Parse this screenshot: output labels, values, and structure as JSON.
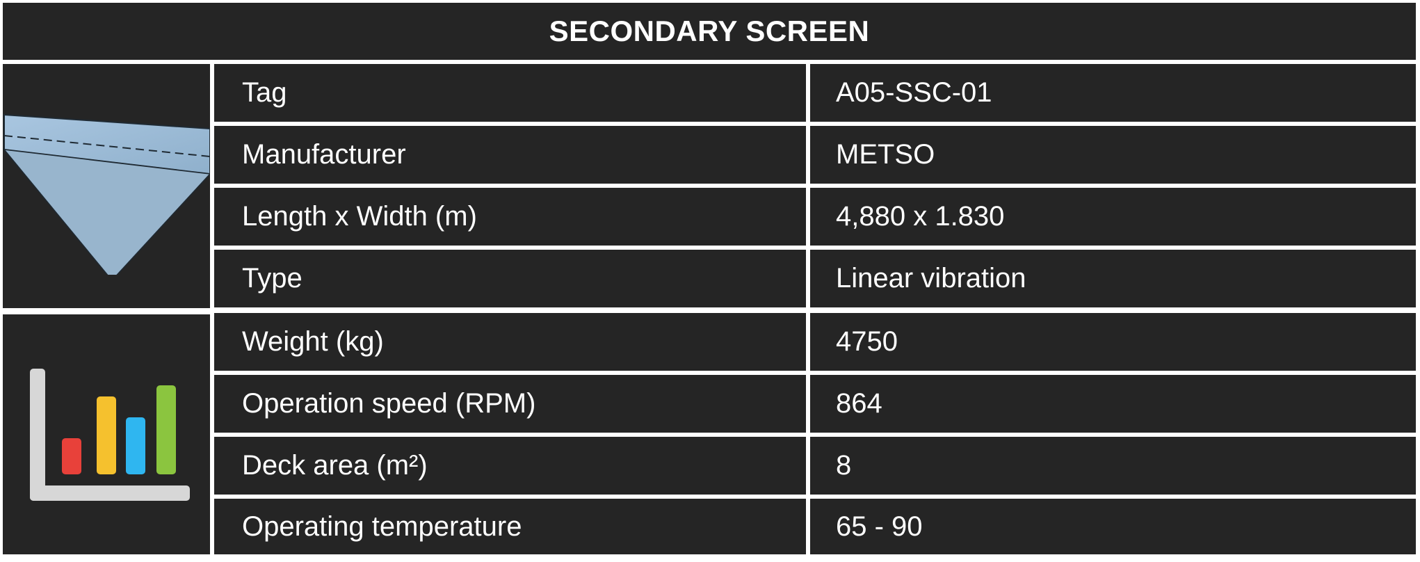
{
  "header": {
    "title": "SECONDARY SCREEN"
  },
  "icons": {
    "top": "screen-deck-icon",
    "bottom": "bar-chart-icon"
  },
  "colors": {
    "cell_background": "#252525",
    "text": "#ffffff",
    "grid_lines": "#ffffff",
    "bar_red": "#e8413a",
    "bar_yellow": "#f5c12e",
    "bar_blue": "#2fb6f0",
    "bar_green": "#8bc53f"
  },
  "rows": [
    {
      "label": "Tag",
      "value": "A05-SSC-01"
    },
    {
      "label": "Manufacturer",
      "value": "METSO"
    },
    {
      "label": "Length x Width (m)",
      "value": "4,880 x 1.830"
    },
    {
      "label": "Type",
      "value": "Linear vibration"
    },
    {
      "label": "Weight (kg)",
      "value": "4750"
    },
    {
      "label": "Operation speed (RPM)",
      "value": "864"
    },
    {
      "label": "Deck area (m²)",
      "value": "8"
    },
    {
      "label": "Operating temperature",
      "value": "65 - 90"
    }
  ]
}
